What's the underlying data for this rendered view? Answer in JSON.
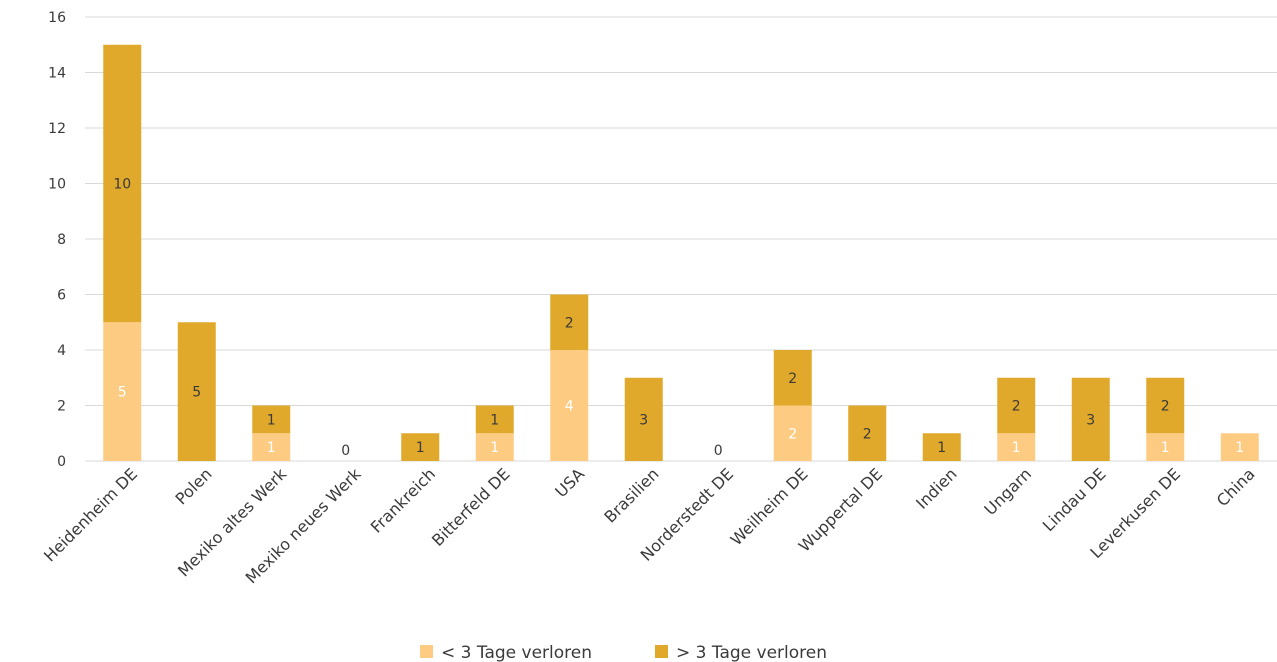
{
  "chart_data": {
    "type": "bar",
    "stacked": true,
    "categories": [
      "Heidenheim DE",
      "Polen",
      "Mexiko altes Werk",
      "Mexiko neues Werk",
      "Frankreich",
      "Bitterfeld DE",
      "USA",
      "Brasilien",
      "Norderstedt DE",
      "Weilheim DE",
      "Wuppertal DE",
      "Indien",
      "Ungarn",
      "Lindau DE",
      "Leverkusen DE",
      "China"
    ],
    "series": [
      {
        "name": "< 3 Tage verloren",
        "color": "#FDCB82",
        "label_color": "#ffffff",
        "values": [
          5,
          0,
          1,
          0,
          0,
          1,
          4,
          0,
          0,
          2,
          0,
          0,
          1,
          0,
          1,
          1
        ]
      },
      {
        "name": "> 3 Tage verloren",
        "color": "#E0A92B",
        "label_color": "#3a3a3a",
        "values": [
          10,
          5,
          1,
          0,
          1,
          1,
          2,
          3,
          0,
          2,
          2,
          1,
          2,
          3,
          2,
          0
        ]
      }
    ],
    "zero_total_labels": [
      "0"
    ],
    "yticks": [
      "0",
      "2",
      "4",
      "6",
      "8",
      "10",
      "12",
      "14",
      "16"
    ],
    "ylim": [
      0,
      16
    ],
    "grid": true,
    "legend_position": "bottom"
  }
}
